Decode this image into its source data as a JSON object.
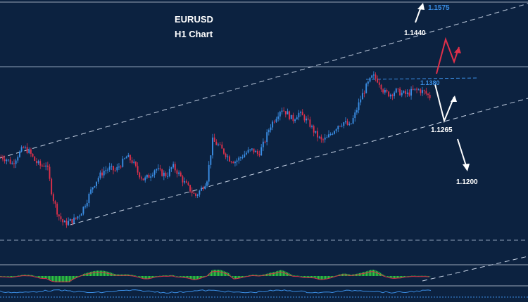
{
  "chart_data": {
    "type": "candlestick",
    "symbol": "EURUSD",
    "timeframe": "H1 Chart",
    "price_levels": [
      {
        "value": "1.1575",
        "role": "target-high",
        "color": "#3b8fe6"
      },
      {
        "value": "1.1440",
        "role": "resistance",
        "color": "#ffffff"
      },
      {
        "value": "1.1380",
        "role": "pivot",
        "color": "#3b8fe6"
      },
      {
        "value": "1.1265",
        "role": "support",
        "color": "#ffffff"
      },
      {
        "value": "1.1200",
        "role": "target-low",
        "color": "#ffffff"
      }
    ],
    "colors": {
      "background": "#0c2240",
      "bull_candle": "#3b8fe6",
      "bear_candle": "#e0304a",
      "channel_lines": "#c8d4e6",
      "projection_red": "#e0304a",
      "projection_white": "#ffffff",
      "histogram": "#2ecc40"
    },
    "price_path": [
      1.1265,
      1.126,
      1.125,
      1.127,
      1.1285,
      1.1275,
      1.1255,
      1.1245,
      1.125,
      1.118,
      1.114,
      1.112,
      1.1125,
      1.113,
      1.1145,
      1.117,
      1.12,
      1.122,
      1.1235,
      1.124,
      1.1235,
      1.125,
      1.1265,
      1.1255,
      1.123,
      1.1215,
      1.1225,
      1.124,
      1.123,
      1.1225,
      1.1245,
      1.123,
      1.121,
      1.1195,
      1.118,
      1.1195,
      1.1215,
      1.13,
      1.129,
      1.1275,
      1.126,
      1.1255,
      1.1265,
      1.1275,
      1.128,
      1.127,
      1.1295,
      1.133,
      1.135,
      1.137,
      1.136,
      1.1345,
      1.136,
      1.135,
      1.1335,
      1.1315,
      1.13,
      1.1305,
      1.132,
      1.1335,
      1.134,
      1.133,
      1.136,
      1.1395,
      1.142,
      1.144,
      1.143,
      1.1405,
      1.14,
      1.1408,
      1.1403,
      1.14,
      1.1408,
      1.141,
      1.1405,
      1.1395
    ],
    "ylim": [
      1.108,
      1.16
    ]
  }
}
